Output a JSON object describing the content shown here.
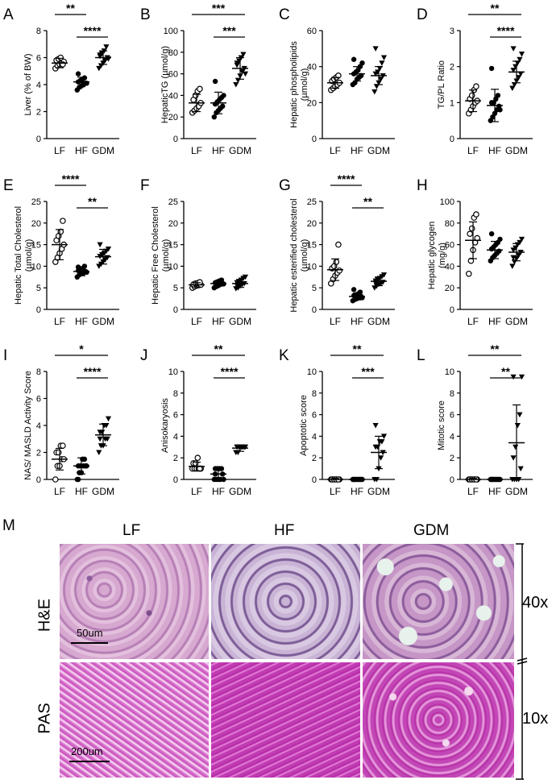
{
  "categories": [
    "LF",
    "HF",
    "GDM"
  ],
  "panels": [
    {
      "letter": "A",
      "ylabel": [
        "Liver (% of BW)"
      ],
      "ylim": [
        0,
        8
      ],
      "ticks": [
        0,
        2,
        4,
        6,
        8
      ],
      "sig": [
        {
          "a": 0,
          "b": 1,
          "label": "**"
        },
        {
          "a": 1,
          "b": 2,
          "label": "****"
        }
      ],
      "groups": [
        {
          "marker": "circle-open",
          "mean": 5.6,
          "sd": 0.35,
          "points": [
            5.2,
            5.4,
            5.5,
            5.6,
            5.7,
            5.8,
            5.9,
            6.0,
            5.5
          ]
        },
        {
          "marker": "circle",
          "mean": 4.2,
          "sd": 0.35,
          "points": [
            3.6,
            3.8,
            3.9,
            4.0,
            4.1,
            4.2,
            4.3,
            4.4,
            4.5,
            4.1,
            4.8
          ]
        },
        {
          "marker": "triangle-down",
          "mean": 6.0,
          "sd": 0.5,
          "points": [
            5.2,
            5.4,
            5.6,
            5.8,
            6.0,
            6.1,
            6.3,
            6.5,
            6.8,
            5.9,
            6.2
          ]
        }
      ]
    },
    {
      "letter": "B",
      "ylabel": [
        "HepaticTG (µmol/g)"
      ],
      "ylim": [
        0,
        100
      ],
      "ticks": [
        0,
        20,
        40,
        60,
        80,
        100
      ],
      "sig": [
        {
          "a": 0,
          "b": 2,
          "label": "***"
        },
        {
          "a": 1,
          "b": 2,
          "label": "***"
        }
      ],
      "groups": [
        {
          "marker": "circle-open",
          "mean": 33,
          "sd": 8,
          "points": [
            24,
            26,
            28,
            30,
            33,
            36,
            40,
            44,
            46
          ]
        },
        {
          "marker": "circle",
          "mean": 33,
          "sd": 10,
          "points": [
            20,
            24,
            26,
            28,
            30,
            32,
            34,
            36,
            38,
            40,
            53
          ]
        },
        {
          "marker": "triangle-down",
          "mean": 65,
          "sd": 10,
          "points": [
            50,
            54,
            58,
            62,
            65,
            68,
            72,
            75,
            78,
            60,
            70
          ]
        }
      ]
    },
    {
      "letter": "C",
      "ylabel": [
        "Hepatic phospholipids",
        "(µmol/g)"
      ],
      "ylim": [
        0,
        60
      ],
      "ticks": [
        0,
        20,
        40,
        60
      ],
      "sig": [],
      "groups": [
        {
          "marker": "circle-open",
          "mean": 31,
          "sd": 3,
          "points": [
            27,
            28,
            29,
            30,
            31,
            32,
            33,
            34,
            35
          ]
        },
        {
          "marker": "circle",
          "mean": 36,
          "sd": 4,
          "points": [
            30,
            31,
            33,
            34,
            35,
            36,
            37,
            38,
            40,
            42,
            44
          ]
        },
        {
          "marker": "triangle-down",
          "mean": 35,
          "sd": 5,
          "points": [
            26,
            29,
            31,
            33,
            35,
            36,
            37,
            39,
            42,
            45,
            50
          ]
        }
      ]
    },
    {
      "letter": "D",
      "ylabel": [
        "TG/PL Ratio"
      ],
      "ylim": [
        0,
        3
      ],
      "ticks": [
        0,
        1,
        2,
        3
      ],
      "sig": [
        {
          "a": 0,
          "b": 2,
          "label": "**"
        },
        {
          "a": 1,
          "b": 2,
          "label": "****"
        }
      ],
      "groups": [
        {
          "marker": "circle-open",
          "mean": 1.05,
          "sd": 0.3,
          "points": [
            0.7,
            0.8,
            0.9,
            1.0,
            1.05,
            1.1,
            1.2,
            1.35,
            1.45
          ]
        },
        {
          "marker": "circle",
          "mean": 0.92,
          "sd": 0.45,
          "points": [
            0.5,
            0.6,
            0.7,
            0.8,
            0.9,
            1.0,
            1.0,
            1.1,
            1.2,
            0.8,
            1.95
          ]
        },
        {
          "marker": "triangle-down",
          "mean": 1.85,
          "sd": 0.3,
          "points": [
            1.4,
            1.5,
            1.6,
            1.7,
            1.8,
            1.9,
            2.0,
            2.1,
            2.2,
            2.35,
            2.5
          ]
        }
      ]
    },
    {
      "letter": "E",
      "ylabel": [
        "Hepatic Total Cholesterol",
        "(µmol/g)"
      ],
      "ylim": [
        0,
        25
      ],
      "ticks": [
        0,
        5,
        10,
        15,
        20,
        25
      ],
      "sig": [
        {
          "a": 0,
          "b": 1,
          "label": "****"
        },
        {
          "a": 1,
          "b": 2,
          "label": "**"
        }
      ],
      "groups": [
        {
          "marker": "circle-open",
          "mean": 15,
          "sd": 3.5,
          "points": [
            11,
            12,
            13,
            14,
            15,
            16,
            17,
            18,
            20.5
          ]
        },
        {
          "marker": "circle",
          "mean": 8.8,
          "sd": 1.0,
          "points": [
            7.5,
            8,
            8.3,
            8.5,
            8.8,
            9,
            9.2,
            9.5,
            10,
            8.6,
            9.8
          ]
        },
        {
          "marker": "triangle-down",
          "mean": 12.2,
          "sd": 1.7,
          "points": [
            10,
            10.5,
            11,
            11.5,
            12,
            12.3,
            12.7,
            13,
            13.5,
            14,
            15
          ]
        }
      ]
    },
    {
      "letter": "F",
      "ylabel": [
        "Hepatic Free Cholesterol",
        "(µmol/g)"
      ],
      "ylim": [
        0,
        25
      ],
      "ticks": [
        0,
        5,
        10,
        15,
        20,
        25
      ],
      "sig": [],
      "groups": [
        {
          "marker": "circle-open",
          "mean": 5.7,
          "sd": 0.5,
          "points": [
            5.0,
            5.3,
            5.5,
            5.6,
            5.7,
            5.8,
            6.0,
            6.1,
            6.3
          ]
        },
        {
          "marker": "circle",
          "mean": 6.0,
          "sd": 0.6,
          "points": [
            5.0,
            5.3,
            5.5,
            5.8,
            6.0,
            6.2,
            6.4,
            6.6,
            6.8,
            5.9,
            6.1
          ]
        },
        {
          "marker": "triangle-down",
          "mean": 6.0,
          "sd": 0.9,
          "points": [
            4.8,
            5.0,
            5.4,
            5.8,
            6.0,
            6.2,
            6.5,
            6.8,
            7.2,
            7.5,
            5.6
          ]
        }
      ]
    },
    {
      "letter": "G",
      "ylabel": [
        "Hepatic esterified cholesterol",
        "(µmol/g)"
      ],
      "ylim": [
        0,
        25
      ],
      "ticks": [
        0,
        5,
        10,
        15,
        20,
        25
      ],
      "sig": [
        {
          "a": 0,
          "b": 1,
          "label": "****"
        },
        {
          "a": 1,
          "b": 2,
          "label": "**"
        }
      ],
      "groups": [
        {
          "marker": "circle-open",
          "mean": 9.2,
          "sd": 2.5,
          "points": [
            6,
            7,
            7.8,
            8.5,
            9,
            9.5,
            10,
            11,
            15
          ]
        },
        {
          "marker": "circle",
          "mean": 3.0,
          "sd": 0.8,
          "points": [
            2,
            2.3,
            2.5,
            2.8,
            3,
            3.2,
            3.4,
            3.6,
            4,
            2.7,
            4.6
          ]
        },
        {
          "marker": "triangle-down",
          "mean": 6.5,
          "sd": 1.0,
          "points": [
            5,
            5.4,
            5.8,
            6,
            6.3,
            6.6,
            6.9,
            7.2,
            7.6,
            8,
            6.1
          ]
        }
      ]
    },
    {
      "letter": "H",
      "ylabel": [
        "Hepatic glycogen",
        "(mg/g)"
      ],
      "ylim": [
        0,
        100
      ],
      "ticks": [
        0,
        20,
        40,
        60,
        80,
        100
      ],
      "sig": [],
      "groups": [
        {
          "marker": "circle-open",
          "mean": 64,
          "sd": 17,
          "points": [
            33,
            45,
            55,
            62,
            66,
            70,
            75,
            85,
            88
          ]
        },
        {
          "marker": "circle",
          "mean": 55,
          "sd": 8,
          "points": [
            45,
            48,
            50,
            52,
            54,
            56,
            58,
            60,
            62,
            65,
            70
          ]
        },
        {
          "marker": "triangle-down",
          "mean": 53,
          "sd": 8,
          "points": [
            40,
            44,
            47,
            50,
            53,
            55,
            57,
            60,
            62,
            65,
            48
          ]
        }
      ]
    },
    {
      "letter": "I",
      "ylabel": [
        "NAS/ MASLD Activity Score"
      ],
      "ylim": [
        0,
        8
      ],
      "ticks": [
        0,
        2,
        4,
        6,
        8
      ],
      "sig": [
        {
          "a": 0,
          "b": 2,
          "label": "*"
        },
        {
          "a": 1,
          "b": 2,
          "label": "****"
        }
      ],
      "groups": [
        {
          "marker": "circle-open",
          "mean": 1.5,
          "sd": 0.8,
          "points": [
            0,
            1,
            1,
            1.5,
            1.5,
            2,
            2,
            2.5,
            2.5
          ]
        },
        {
          "marker": "circle",
          "mean": 1.0,
          "sd": 0.6,
          "points": [
            0,
            0.5,
            0.5,
            1,
            1,
            1,
            1,
            1.5,
            1.5,
            1,
            0
          ]
        },
        {
          "marker": "triangle-down",
          "mean": 3.3,
          "sd": 0.8,
          "points": [
            2,
            2.5,
            2.5,
            3,
            3,
            3.5,
            3.5,
            4,
            4,
            4.5,
            3
          ]
        }
      ]
    },
    {
      "letter": "J",
      "ylabel": [
        "Anisokaryosis"
      ],
      "ylim": [
        0,
        10
      ],
      "ticks": [
        0,
        2,
        4,
        6,
        8,
        10
      ],
      "sig": [
        {
          "a": 0,
          "b": 2,
          "label": "**"
        },
        {
          "a": 1,
          "b": 2,
          "label": "****"
        }
      ],
      "groups": [
        {
          "marker": "circle-open",
          "mean": 1.2,
          "sd": 0.4,
          "points": [
            1,
            1,
            1,
            1,
            1,
            1.5,
            1.5,
            2,
            1
          ]
        },
        {
          "marker": "circle",
          "mean": 0.5,
          "sd": 0.5,
          "points": [
            0,
            0,
            0,
            0,
            0.5,
            0.5,
            1,
            1,
            1,
            0,
            1
          ]
        },
        {
          "marker": "triangle-down",
          "mean": 2.9,
          "sd": 0.3,
          "points": [
            2.5,
            2.5,
            3,
            3,
            3,
            3,
            3,
            3,
            3,
            3,
            3
          ]
        }
      ]
    },
    {
      "letter": "K",
      "ylabel": [
        "Apoptotic score"
      ],
      "ylim": [
        0,
        10
      ],
      "ticks": [
        0,
        2,
        4,
        6,
        8,
        10
      ],
      "sig": [
        {
          "a": 0,
          "b": 2,
          "label": "**"
        },
        {
          "a": 1,
          "b": 2,
          "label": "***"
        }
      ],
      "groups": [
        {
          "marker": "circle-open",
          "mean": 0,
          "sd": 0.1,
          "points": [
            0,
            0,
            0,
            0,
            0,
            0,
            0,
            0,
            0
          ]
        },
        {
          "marker": "circle",
          "mean": 0,
          "sd": 0.1,
          "points": [
            0,
            0,
            0,
            0,
            0,
            0,
            0,
            0,
            0,
            0,
            0
          ]
        },
        {
          "marker": "triangle-down",
          "mean": 2.5,
          "sd": 1.5,
          "points": [
            0,
            0,
            1,
            2,
            2.5,
            3,
            3,
            3.5,
            3.5,
            4,
            5
          ]
        }
      ]
    },
    {
      "letter": "L",
      "ylabel": [
        "Mitotic score"
      ],
      "ylim": [
        0,
        10
      ],
      "ticks": [
        0,
        2,
        4,
        6,
        8,
        10
      ],
      "sig": [
        {
          "a": 0,
          "b": 2,
          "label": "**"
        },
        {
          "a": 1,
          "b": 2,
          "label": "**"
        }
      ],
      "groups": [
        {
          "marker": "circle-open",
          "mean": 0,
          "sd": 0.1,
          "points": [
            0,
            0,
            0,
            0,
            0,
            0,
            0,
            0,
            0
          ]
        },
        {
          "marker": "circle",
          "mean": 0,
          "sd": 0.1,
          "points": [
            0,
            0,
            0,
            0,
            0,
            0,
            0,
            0,
            0,
            0,
            0
          ]
        },
        {
          "marker": "triangle-down",
          "mean": 3.4,
          "sd": 3.5,
          "points": [
            0,
            0,
            0,
            0,
            1,
            2,
            3,
            5,
            6,
            9.5,
            9.5
          ]
        }
      ]
    }
  ],
  "histology": {
    "letter": "M",
    "columns": [
      "LF",
      "HF",
      "GDM"
    ],
    "rows": [
      {
        "label": "H&E",
        "magnification": "40x",
        "scalebar": "50um"
      },
      {
        "label": "PAS",
        "magnification": "10x",
        "scalebar": "200um"
      }
    ]
  },
  "colors": {
    "he_stain": "#c796c4",
    "pas_stain": "#c63fb6",
    "ink": "#000000"
  }
}
